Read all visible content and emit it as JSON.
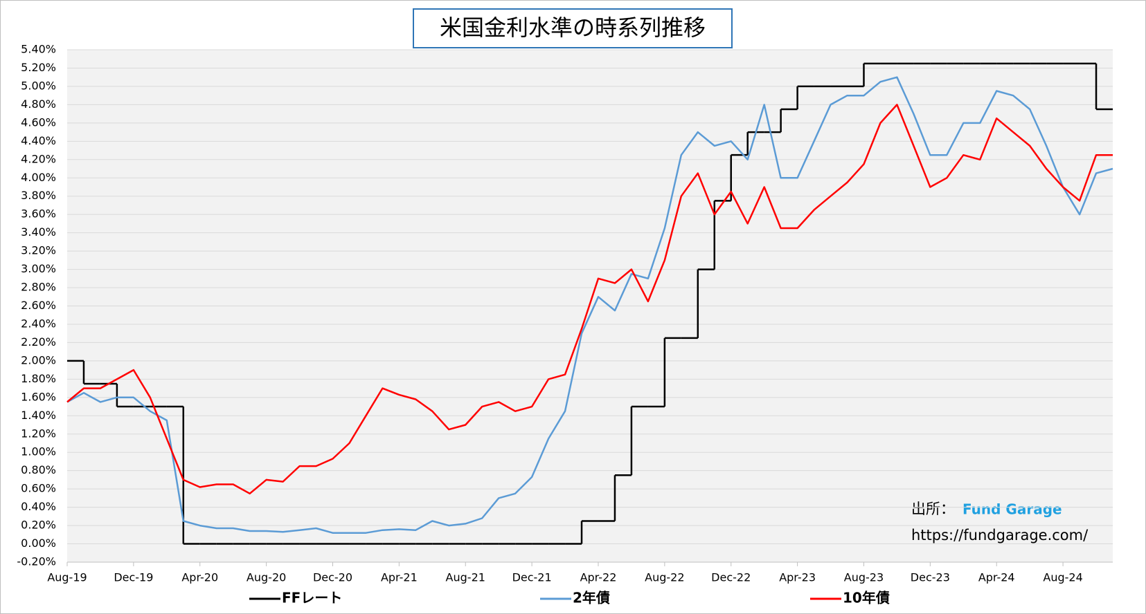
{
  "chart_data": {
    "type": "line",
    "title": "米国金利水準の時系列推移",
    "x": [
      "Aug-19",
      "Sep-19",
      "Oct-19",
      "Nov-19",
      "Dec-19",
      "Jan-20",
      "Feb-20",
      "Mar-20",
      "Apr-20",
      "May-20",
      "Jun-20",
      "Jul-20",
      "Aug-20",
      "Sep-20",
      "Oct-20",
      "Nov-20",
      "Dec-20",
      "Jan-21",
      "Feb-21",
      "Mar-21",
      "Apr-21",
      "May-21",
      "Jun-21",
      "Jul-21",
      "Aug-21",
      "Sep-21",
      "Oct-21",
      "Nov-21",
      "Dec-21",
      "Jan-22",
      "Feb-22",
      "Mar-22",
      "Apr-22",
      "May-22",
      "Jun-22",
      "Jul-22",
      "Aug-22",
      "Sep-22",
      "Oct-22",
      "Nov-22",
      "Dec-22",
      "Jan-23",
      "Feb-23",
      "Mar-23",
      "Apr-23",
      "May-23",
      "Jun-23",
      "Jul-23",
      "Aug-23",
      "Sep-23",
      "Oct-23",
      "Nov-23",
      "Dec-23",
      "Jan-24",
      "Feb-24",
      "Mar-24",
      "Apr-24",
      "May-24",
      "Jun-24",
      "Jul-24",
      "Aug-24",
      "Sep-24",
      "Oct-24",
      "Nov-24"
    ],
    "xticks": [
      "Aug-19",
      "Dec-19",
      "Apr-20",
      "Aug-20",
      "Dec-20",
      "Apr-21",
      "Aug-21",
      "Dec-21",
      "Apr-22",
      "Aug-22",
      "Dec-22",
      "Apr-23",
      "Aug-23",
      "Dec-23",
      "Apr-24",
      "Aug-24"
    ],
    "series": [
      {
        "name": "FFレート",
        "color": "#000000",
        "step": true,
        "values": [
          2.0,
          1.75,
          1.75,
          1.5,
          1.5,
          1.5,
          1.5,
          0,
          0,
          0,
          0,
          0,
          0,
          0,
          0,
          0,
          0,
          0,
          0,
          0,
          0,
          0,
          0,
          0,
          0,
          0,
          0,
          0,
          0,
          0,
          0,
          0.25,
          0.25,
          0.75,
          1.5,
          1.5,
          2.25,
          2.25,
          3.0,
          3.75,
          4.25,
          4.5,
          4.5,
          4.75,
          5.0,
          5.0,
          5.0,
          5.0,
          5.25,
          5.25,
          5.25,
          5.25,
          5.25,
          5.25,
          5.25,
          5.25,
          5.25,
          5.25,
          5.25,
          5.25,
          5.25,
          5.25,
          4.75,
          4.75
        ]
      },
      {
        "name": "2年債",
        "color": "#5b9bd5",
        "values": [
          1.55,
          1.65,
          1.55,
          1.6,
          1.6,
          1.45,
          1.35,
          0.25,
          0.2,
          0.17,
          0.17,
          0.14,
          0.14,
          0.13,
          0.15,
          0.17,
          0.12,
          0.12,
          0.12,
          0.15,
          0.16,
          0.15,
          0.25,
          0.2,
          0.22,
          0.28,
          0.5,
          0.55,
          0.73,
          1.15,
          1.45,
          2.3,
          2.7,
          2.55,
          2.95,
          2.9,
          3.45,
          4.25,
          4.5,
          4.35,
          4.4,
          4.2,
          4.8,
          4.0,
          4.0,
          4.4,
          4.8,
          4.9,
          4.9,
          5.05,
          5.1,
          4.7,
          4.25,
          4.25,
          4.6,
          4.6,
          4.95,
          4.9,
          4.75,
          4.35,
          3.9,
          3.6,
          4.05,
          4.1
        ]
      },
      {
        "name": "10年債",
        "color": "#ff0000",
        "values": [
          1.55,
          1.7,
          1.7,
          1.8,
          1.9,
          1.6,
          1.15,
          0.7,
          0.62,
          0.65,
          0.65,
          0.55,
          0.7,
          0.68,
          0.85,
          0.85,
          0.93,
          1.1,
          1.4,
          1.7,
          1.63,
          1.58,
          1.45,
          1.25,
          1.3,
          1.5,
          1.55,
          1.45,
          1.5,
          1.8,
          1.85,
          2.35,
          2.9,
          2.85,
          3.0,
          2.65,
          3.1,
          3.8,
          4.05,
          3.6,
          3.85,
          3.5,
          3.9,
          3.45,
          3.45,
          3.65,
          3.8,
          3.95,
          4.15,
          4.6,
          4.8,
          4.35,
          3.9,
          4.0,
          4.25,
          4.2,
          4.65,
          4.5,
          4.35,
          4.1,
          3.9,
          3.75,
          4.25,
          4.25
        ]
      }
    ],
    "ylim": [
      -0.2,
      5.4
    ],
    "yticks": [
      {
        "value": -0.2,
        "label": "-0.20%"
      },
      {
        "value": 0,
        "label": "0.00%"
      },
      {
        "value": 0.2,
        "label": "0.20%"
      },
      {
        "value": 0.4,
        "label": "0.40%"
      },
      {
        "value": 0.6,
        "label": "0.60%"
      },
      {
        "value": 0.8,
        "label": "0.80%"
      },
      {
        "value": 1.0,
        "label": "1.00%"
      },
      {
        "value": 1.2,
        "label": "1.20%"
      },
      {
        "value": 1.4,
        "label": "1.40%"
      },
      {
        "value": 1.6,
        "label": "1.60%"
      },
      {
        "value": 1.8,
        "label": "1.80%"
      },
      {
        "value": 2.0,
        "label": "2.00%"
      },
      {
        "value": 2.2,
        "label": "2.20%"
      },
      {
        "value": 2.4,
        "label": "2.40%"
      },
      {
        "value": 2.6,
        "label": "2.60%"
      },
      {
        "value": 2.8,
        "label": "2.80%"
      },
      {
        "value": 3.0,
        "label": "3.00%"
      },
      {
        "value": 3.2,
        "label": "3.20%"
      },
      {
        "value": 3.4,
        "label": "3.40%"
      },
      {
        "value": 3.6,
        "label": "3.60%"
      },
      {
        "value": 3.8,
        "label": "3.80%"
      },
      {
        "value": 4.0,
        "label": "4.00%"
      },
      {
        "value": 4.2,
        "label": "4.20%"
      },
      {
        "value": 4.4,
        "label": "4.40%"
      },
      {
        "value": 4.6,
        "label": "4.60%"
      },
      {
        "value": 4.8,
        "label": "4.80%"
      },
      {
        "value": 5.0,
        "label": "5.00%"
      },
      {
        "value": 5.2,
        "label": "5.20%"
      },
      {
        "value": 5.4,
        "label": "5.40%"
      }
    ],
    "grid": true,
    "legend": "bottom",
    "annotations": [
      "出所：",
      "Fund Garage",
      "https://fundgarage.com/"
    ]
  }
}
